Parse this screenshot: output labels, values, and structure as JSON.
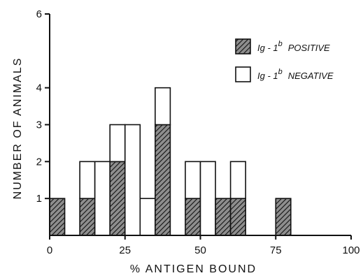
{
  "chart_data": {
    "type": "bar",
    "subtype": "stacked-histogram",
    "title": "",
    "xlabel": "% ANTIGEN BOUND",
    "ylabel": "NUMBER OF ANIMALS",
    "xlim": [
      0,
      100
    ],
    "ylim": [
      0,
      6
    ],
    "x_ticks": [
      0,
      25,
      50,
      75,
      100
    ],
    "y_ticks": [
      1,
      2,
      3,
      4,
      6
    ],
    "bin_width": 5,
    "bins": [
      0,
      10,
      15,
      20,
      25,
      30,
      35,
      45,
      50,
      55,
      60,
      75
    ],
    "series": [
      {
        "name": "Ig-1b POSITIVE",
        "legend_main": "Ig - 1",
        "legend_sup": "b",
        "legend_word": "POSITIVE",
        "pattern": "hatched",
        "values": [
          1,
          1,
          0,
          2,
          0,
          0,
          3,
          1,
          0,
          1,
          1,
          1
        ]
      },
      {
        "name": "Ig-1b NEGATIVE",
        "legend_main": "Ig - 1",
        "legend_sup": "b",
        "legend_word": "NEGATIVE",
        "pattern": "open",
        "values": [
          0,
          1,
          2,
          1,
          3,
          1,
          1,
          1,
          2,
          0,
          1,
          0
        ]
      }
    ],
    "legend_position": "top-right",
    "grid": false,
    "colors": {
      "hatch": "#111111",
      "hatch_bg": "#9a9a9a",
      "open": "#ffffff",
      "ink": "#111111"
    }
  }
}
